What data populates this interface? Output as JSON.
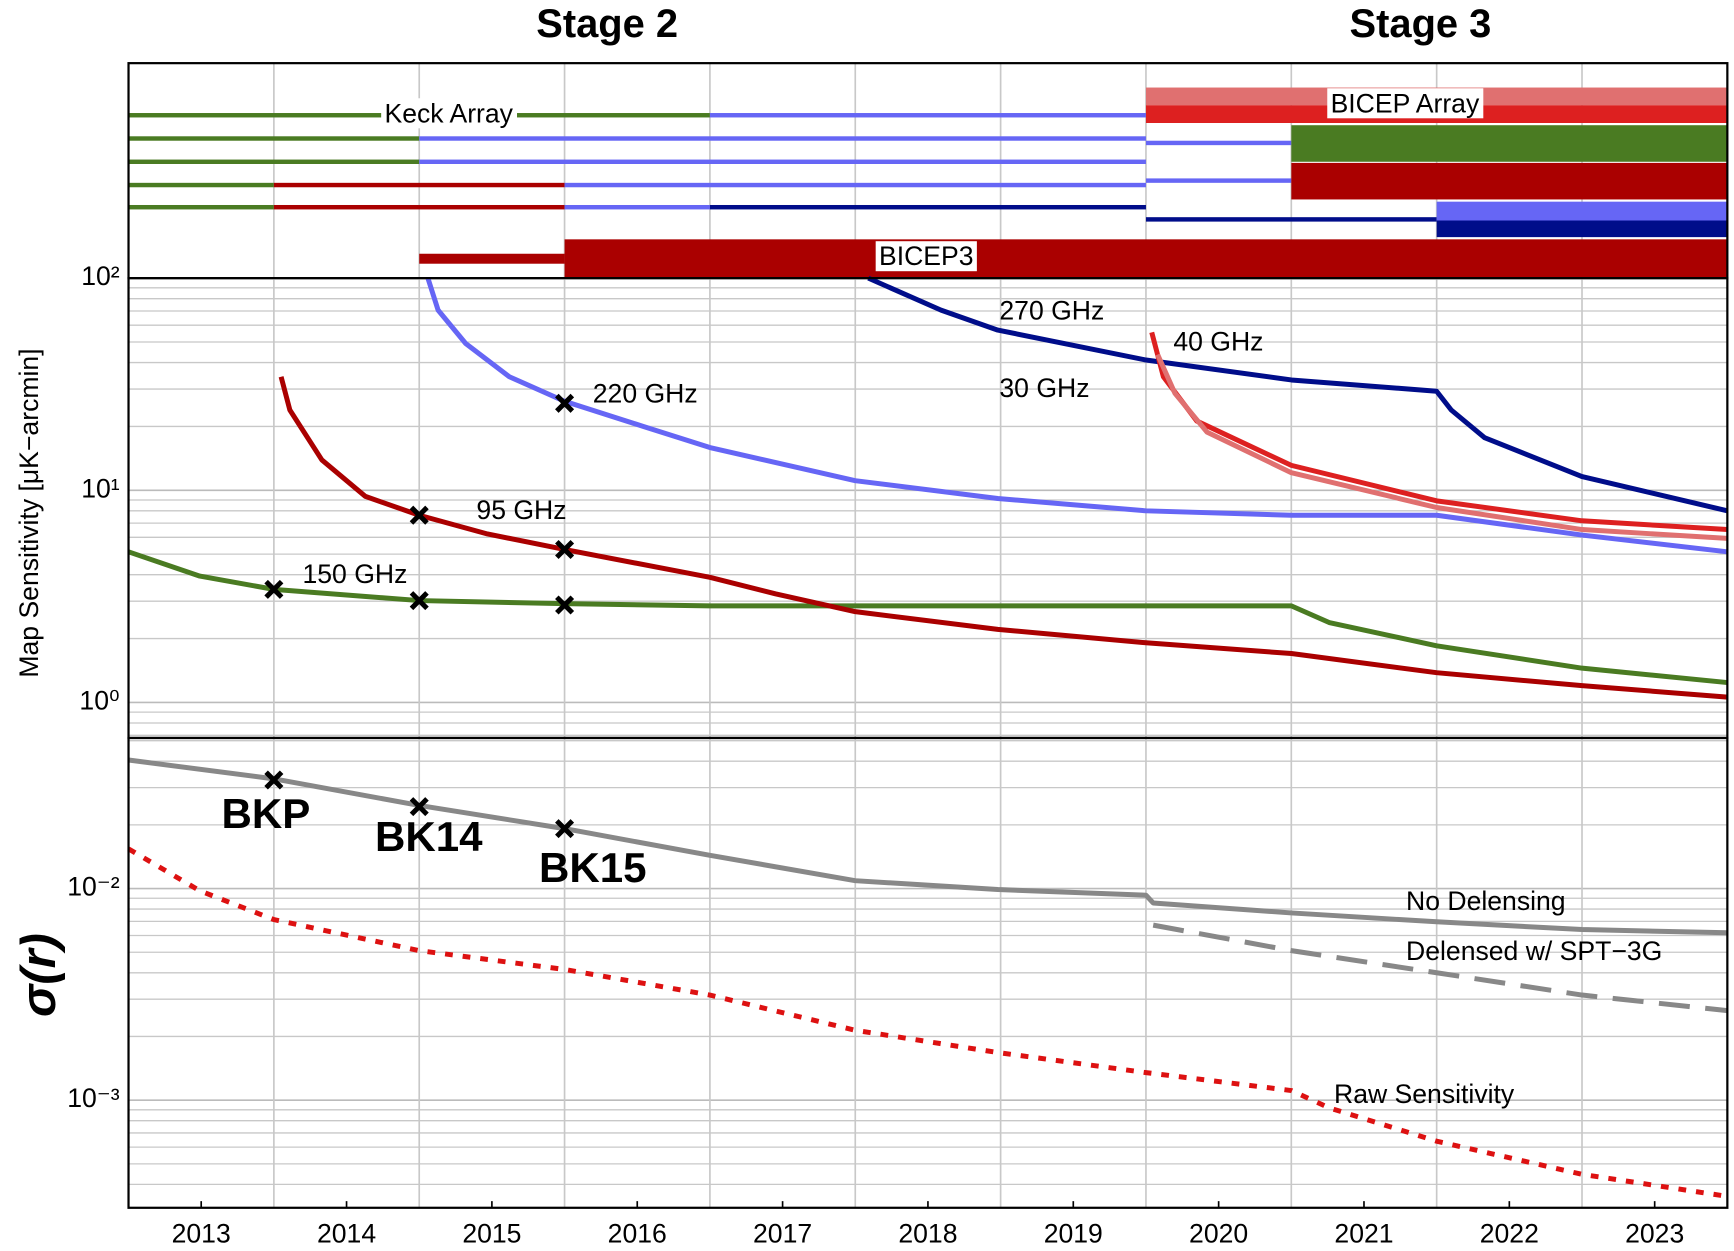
{
  "chart_data": [
    {
      "type": "timeline",
      "stages": [
        "Stage 2",
        "Stage 3"
      ],
      "xlim": [
        2013,
        2024
      ],
      "xgrid": [
        2014,
        2015,
        2016,
        2017,
        2018,
        2019,
        2020,
        2021,
        2022,
        2023
      ],
      "rows": [
        {
          "label": "Keck Array",
          "segments": [
            {
              "start": 2013,
              "end": 2017,
              "color": "#4a7b22"
            },
            {
              "start": 2017,
              "end": 2020,
              "color": "#6666f5"
            }
          ]
        },
        {
          "segments": [
            {
              "start": 2013,
              "end": 2015,
              "color": "#4a7b22"
            },
            {
              "start": 2015,
              "end": 2020,
              "color": "#6666f5"
            }
          ]
        },
        {
          "segments": [
            {
              "start": 2013,
              "end": 2015,
              "color": "#4a7b22"
            },
            {
              "start": 2015,
              "end": 2020,
              "color": "#6666f5"
            }
          ]
        },
        {
          "segments": [
            {
              "start": 2013,
              "end": 2014,
              "color": "#4a7b22"
            },
            {
              "start": 2014,
              "end": 2016,
              "color": "#aa0000"
            },
            {
              "start": 2016,
              "end": 2020,
              "color": "#6666f5"
            }
          ]
        },
        {
          "segments": [
            {
              "start": 2013,
              "end": 2014,
              "color": "#4a7b22"
            },
            {
              "start": 2014,
              "end": 2016,
              "color": "#aa0000"
            },
            {
              "start": 2016,
              "end": 2017,
              "color": "#6666f5"
            },
            {
              "start": 2017,
              "end": 2020,
              "color": "#000d8a"
            }
          ]
        },
        {
          "segments": [
            {
              "start": 2020,
              "end": 2024,
              "color": "#e07070"
            }
          ]
        },
        {
          "label": "BICEP Array",
          "segments": [
            {
              "start": 2020,
              "end": 2024,
              "color": "#dd2020"
            }
          ]
        },
        {
          "segments": [
            {
              "start": 2020,
              "end": 2021,
              "color": "#6666f5"
            }
          ]
        },
        {
          "segments": [
            {
              "start": 2021,
              "end": 2024,
              "color": "#4a7b22"
            }
          ]
        },
        {
          "segments": [
            {
              "start": 2020,
              "end": 2021,
              "color": "#6666f5"
            }
          ]
        },
        {
          "segments": [
            {
              "start": 2021,
              "end": 2024,
              "color": "#aa0000"
            }
          ]
        },
        {
          "segments": [
            {
              "start": 2020,
              "end": 2022,
              "color": "#000d8a"
            }
          ]
        },
        {
          "segments": [
            {
              "start": 2022,
              "end": 2024,
              "color": "#6666f5"
            }
          ]
        },
        {
          "segments": [
            {
              "start": 2022,
              "end": 2024,
              "color": "#000d8a"
            }
          ]
        },
        {
          "segments": [
            {
              "start": 2015,
              "end": 2016,
              "color": "#aa0000"
            }
          ]
        },
        {
          "label": "BICEP3",
          "segments": [
            {
              "start": 2016,
              "end": 2024,
              "color": "#aa0000"
            }
          ]
        }
      ]
    },
    {
      "type": "line",
      "ylabel": "Map Sensitivity [μK−arcmin]",
      "log_y": true,
      "grid": true,
      "xlim": [
        2013,
        2024
      ],
      "xgrid": [
        2014,
        2015,
        2016,
        2017,
        2018,
        2019,
        2020,
        2021,
        2022,
        2023
      ],
      "ylim": [
        0.68,
        100
      ],
      "yticks": [
        {
          "value": 1,
          "label": "10⁰"
        },
        {
          "value": 10,
          "label": "10¹"
        },
        {
          "value": 100,
          "label": "10²"
        }
      ],
      "yminorticks": [
        0.7,
        0.8,
        0.9,
        2,
        3,
        4,
        5,
        6,
        7,
        8,
        9,
        20,
        30,
        40,
        50,
        60,
        70,
        80,
        90
      ],
      "series": [
        {
          "name": "150 GHz",
          "color": "#4a7b22",
          "x": [
            2013,
            2013.49,
            2014,
            2015,
            2016,
            2017,
            2021,
            2021.26,
            2022,
            2023,
            2024
          ],
          "values": [
            5.13,
            3.94,
            3.41,
            3.02,
            2.92,
            2.85,
            2.85,
            2.38,
            1.85,
            1.45,
            1.24
          ]
        },
        {
          "name": "95 GHz",
          "color": "#aa0000",
          "x": [
            2014.05,
            2014.11,
            2014.33,
            2014.63,
            2015,
            2015.47,
            2016,
            2017,
            2017.45,
            2018,
            2018.98,
            2020,
            2021,
            2022,
            2023,
            2024
          ],
          "values": [
            34.3,
            23.9,
            13.9,
            9.36,
            7.63,
            6.22,
            5.26,
            3.89,
            3.25,
            2.68,
            2.21,
            1.91,
            1.7,
            1.38,
            1.2,
            1.06
          ]
        },
        {
          "name": "220 GHz",
          "color": "#6666f5",
          "x": [
            2015.06,
            2015.13,
            2015.32,
            2015.62,
            2016,
            2016.54,
            2017,
            2018,
            2018.98,
            2020,
            2021,
            2022,
            2023,
            2024
          ],
          "values": [
            100,
            70.6,
            49.2,
            34.3,
            26.3,
            20,
            15.9,
            11.1,
            9.14,
            8,
            7.63,
            7.63,
            6.15,
            5.13
          ]
        },
        {
          "name": "270 GHz",
          "color": "#000d8a",
          "x": [
            2018.09,
            2018.59,
            2018.98,
            2020,
            2021,
            2022,
            2022.1,
            2022.33,
            2023,
            2024
          ],
          "values": [
            100,
            70.6,
            56.9,
            41.1,
            33.1,
            29.3,
            23.9,
            17.7,
            11.6,
            8
          ]
        },
        {
          "name": "40 GHz",
          "color": "#dd2020",
          "x": [
            2020.04,
            2020.12,
            2020.35,
            2021,
            2022,
            2023,
            2024
          ],
          "values": [
            55.5,
            34.3,
            21.2,
            13.1,
            8.92,
            7.18,
            6.53
          ]
        },
        {
          "name": "30 GHz",
          "color": "#e07070",
          "x": [
            2020.08,
            2020.2,
            2020.42,
            2021,
            2022,
            2023,
            2024
          ],
          "values": [
            43.6,
            28.6,
            18.8,
            12.1,
            8.3,
            6.53,
            5.93
          ]
        }
      ],
      "markers": {
        "x": [
          2014,
          2015,
          2016,
          2015,
          2016,
          2016
        ],
        "values": [
          3.41,
          3.02,
          2.88,
          7.63,
          5.26,
          25.7
        ]
      }
    },
    {
      "type": "line",
      "ylabel": "σ(r)",
      "log_y": true,
      "grid": true,
      "xlim": [
        2013,
        2024
      ],
      "xgrid": [
        2014,
        2015,
        2016,
        2017,
        2018,
        2019,
        2020,
        2021,
        2022,
        2023
      ],
      "xticks": [
        {
          "value": 2013.5,
          "label": "2013"
        },
        {
          "value": 2014.5,
          "label": "2014"
        },
        {
          "value": 2015.5,
          "label": "2015"
        },
        {
          "value": 2016.5,
          "label": "2016"
        },
        {
          "value": 2017.5,
          "label": "2017"
        },
        {
          "value": 2018.5,
          "label": "2018"
        },
        {
          "value": 2019.5,
          "label": "2019"
        },
        {
          "value": 2020.5,
          "label": "2020"
        },
        {
          "value": 2021.5,
          "label": "2021"
        },
        {
          "value": 2022.5,
          "label": "2022"
        },
        {
          "value": 2023.5,
          "label": "2023"
        }
      ],
      "ylim": [
        0.00031,
        0.0515
      ],
      "yticks": [
        {
          "value": 0.001,
          "label": "10⁻³"
        },
        {
          "value": 0.01,
          "label": "10⁻²"
        }
      ],
      "yminorticks": [
        0.0004,
        0.0005,
        0.0006,
        0.0007,
        0.0008,
        0.0009,
        0.002,
        0.003,
        0.004,
        0.005,
        0.006,
        0.007,
        0.008,
        0.009,
        0.02,
        0.03,
        0.04,
        0.05
      ],
      "series": [
        {
          "name": "No Delensing",
          "color": "#888888",
          "style": "solid",
          "x": [
            2013,
            2014,
            2015,
            2016,
            2017,
            2018,
            2018.98,
            2020,
            2020.05,
            2021,
            2022,
            2023,
            2024
          ],
          "values": [
            0.0405,
            0.033,
            0.0247,
            0.0192,
            0.01436,
            0.0109,
            0.00989,
            0.0093,
            0.00855,
            0.00767,
            0.00697,
            0.0064,
            0.00618
          ]
        },
        {
          "name": "Delensed w/ SPT−3G",
          "color": "#888888",
          "style": "dashed",
          "x": [
            2020.05,
            2021,
            2022,
            2023,
            2024
          ],
          "values": [
            0.00672,
            0.00509,
            0.004,
            0.00314,
            0.00265
          ]
        },
        {
          "name": "Raw Sensitivity",
          "color": "#dd1111",
          "style": "dotted",
          "x": [
            2013,
            2013.49,
            2014,
            2015,
            2016,
            2017,
            2018,
            2018.98,
            2020,
            2021,
            2021.26,
            2022,
            2023,
            2024
          ],
          "values": [
            0.0154,
            0.00976,
            0.00714,
            0.00509,
            0.00415,
            0.00314,
            0.00214,
            0.00168,
            0.00135,
            0.00111,
            0.00092,
            0.00064,
            0.000446,
            0.000351
          ]
        }
      ],
      "markers": {
        "labels": [
          "BKP",
          "BK14",
          "BK15"
        ],
        "x": [
          2014,
          2015,
          2016
        ],
        "values": [
          0.0326,
          0.0244,
          0.0192
        ]
      }
    }
  ]
}
